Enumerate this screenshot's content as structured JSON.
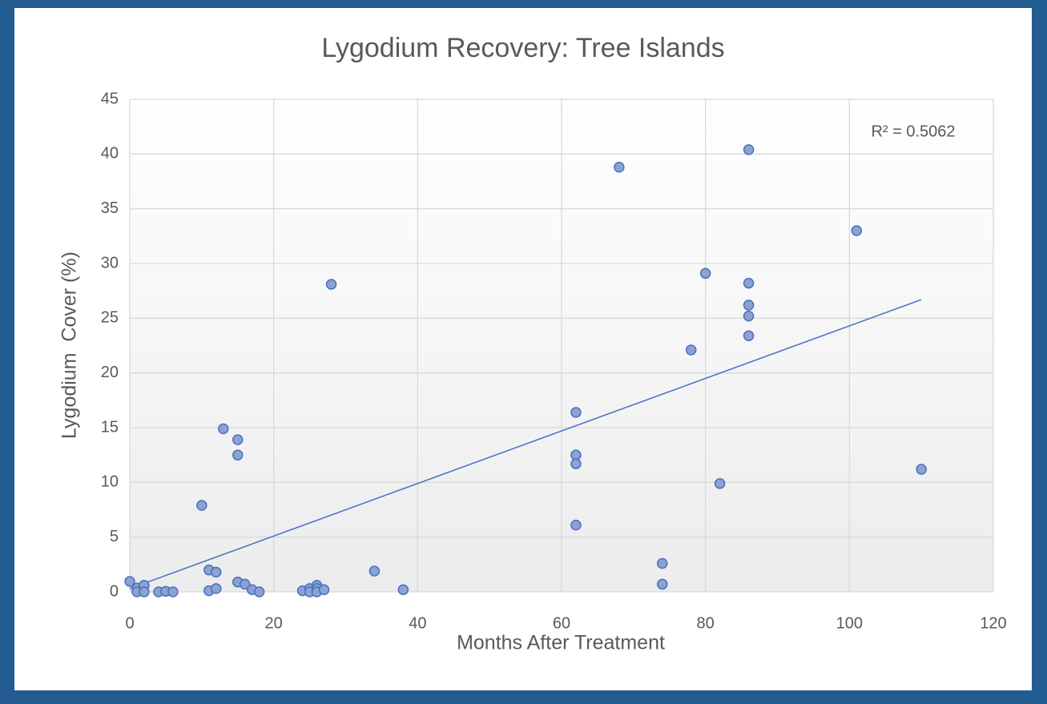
{
  "chart_data": {
    "type": "scatter",
    "title": "Lygodium Recovery: Tree Islands",
    "x_label": "Months After Treatment",
    "y_label": "Lygodium  Cover (%)",
    "annotation": "R² = 0.5062",
    "color": "#8ea1cf",
    "edge_color": "#4472c4",
    "x": [
      0,
      1,
      1,
      2,
      2,
      4,
      5,
      6,
      10,
      11,
      11,
      12,
      12,
      13,
      15,
      15,
      15,
      16,
      17,
      18,
      24,
      25,
      25,
      26,
      26,
      26,
      27,
      28,
      34,
      38,
      62,
      62,
      62,
      62,
      68,
      74,
      74,
      78,
      80,
      82,
      86,
      86,
      86,
      86,
      86,
      101,
      110
    ],
    "values": [
      0.95,
      0.35,
      0,
      0.6,
      0,
      0,
      0.05,
      0,
      7.9,
      2.0,
      0.1,
      1.8,
      0.3,
      14.9,
      13.9,
      12.5,
      0.9,
      0.7,
      0.2,
      0,
      0.1,
      0.3,
      0,
      0.6,
      0.3,
      0,
      0.2,
      28.1,
      1.9,
      0.2,
      16.4,
      12.5,
      11.7,
      6.1,
      38.8,
      2.6,
      0.7,
      22.1,
      29.1,
      9.9,
      40.4,
      28.2,
      26.2,
      25.2,
      23.4,
      33.0,
      11.2
    ],
    "trendline": {
      "color": "#4472c4",
      "x": [
        0,
        110
      ],
      "values": [
        0.3,
        26.7
      ]
    },
    "xlim": [
      0,
      120
    ],
    "xticks": [
      0,
      20,
      40,
      60,
      80,
      100,
      120
    ],
    "ylim": [
      0,
      45
    ],
    "yticks": [
      0,
      5,
      10,
      15,
      20,
      25,
      30,
      35,
      40,
      45
    ],
    "grid": true
  }
}
